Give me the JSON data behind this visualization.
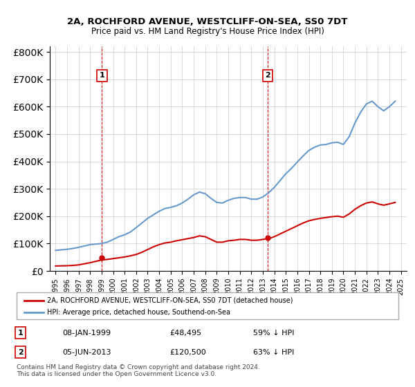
{
  "title": "2A, ROCHFORD AVENUE, WESTCLIFF-ON-SEA, SS0 7DT",
  "subtitle": "Price paid vs. HM Land Registry's House Price Index (HPI)",
  "legend_label_red": "2A, ROCHFORD AVENUE, WESTCLIFF-ON-SEA, SS0 7DT (detached house)",
  "legend_label_blue": "HPI: Average price, detached house, Southend-on-Sea",
  "footer": "Contains HM Land Registry data © Crown copyright and database right 2024.\nThis data is licensed under the Open Government Licence v3.0.",
  "annotation1_num": "1",
  "annotation1_date": "08-JAN-1999",
  "annotation1_price": "£48,495",
  "annotation1_hpi": "59% ↓ HPI",
  "annotation2_num": "2",
  "annotation2_date": "05-JUN-2013",
  "annotation2_price": "£120,500",
  "annotation2_hpi": "63% ↓ HPI",
  "marker1_year": 1999.03,
  "marker1_price": 48495,
  "marker2_year": 2013.43,
  "marker2_price": 120500,
  "red_color": "#cc0000",
  "blue_color": "#6699cc",
  "vline_color": "#cc0000",
  "ylim_max": 820000,
  "hpi_x": [
    1995.0,
    1995.5,
    1996.0,
    1996.5,
    1997.0,
    1997.5,
    1998.0,
    1998.5,
    1999.0,
    1999.5,
    2000.0,
    2000.5,
    2001.0,
    2001.5,
    2002.0,
    2002.5,
    2003.0,
    2003.5,
    2004.0,
    2004.5,
    2005.0,
    2005.5,
    2006.0,
    2006.5,
    2007.0,
    2007.5,
    2008.0,
    2008.5,
    2009.0,
    2009.5,
    2010.0,
    2010.5,
    2011.0,
    2011.5,
    2012.0,
    2012.5,
    2013.0,
    2013.5,
    2014.0,
    2014.5,
    2015.0,
    2015.5,
    2016.0,
    2016.5,
    2017.0,
    2017.5,
    2018.0,
    2018.5,
    2019.0,
    2019.5,
    2020.0,
    2020.5,
    2021.0,
    2021.5,
    2022.0,
    2022.5,
    2023.0,
    2023.5,
    2024.0,
    2024.5
  ],
  "hpi_y": [
    75000,
    77000,
    79000,
    82000,
    86000,
    91000,
    96000,
    98000,
    100000,
    105000,
    115000,
    125000,
    132000,
    142000,
    158000,
    175000,
    192000,
    205000,
    218000,
    228000,
    232000,
    238000,
    248000,
    262000,
    278000,
    288000,
    282000,
    265000,
    250000,
    248000,
    258000,
    265000,
    268000,
    268000,
    262000,
    262000,
    270000,
    285000,
    305000,
    330000,
    355000,
    375000,
    398000,
    420000,
    440000,
    452000,
    460000,
    462000,
    468000,
    470000,
    462000,
    490000,
    540000,
    580000,
    610000,
    620000,
    600000,
    585000,
    600000,
    620000
  ],
  "price_x": [
    1995.0,
    1995.5,
    1996.0,
    1996.5,
    1997.0,
    1997.5,
    1998.0,
    1998.5,
    1999.0,
    1999.5,
    2000.0,
    2000.5,
    2001.0,
    2001.5,
    2002.0,
    2002.5,
    2003.0,
    2003.5,
    2004.0,
    2004.5,
    2005.0,
    2005.5,
    2006.0,
    2006.5,
    2007.0,
    2007.5,
    2008.0,
    2008.5,
    2009.0,
    2009.5,
    2010.0,
    2010.5,
    2011.0,
    2011.5,
    2012.0,
    2012.5,
    2013.0,
    2013.5,
    2014.0,
    2014.5,
    2015.0,
    2015.5,
    2016.0,
    2016.5,
    2017.0,
    2017.5,
    2018.0,
    2018.5,
    2019.0,
    2019.5,
    2020.0,
    2020.5,
    2021.0,
    2021.5,
    2022.0,
    2022.5,
    2023.0,
    2023.5,
    2024.0,
    2024.5
  ],
  "price_y": [
    18000,
    18500,
    19000,
    20000,
    22000,
    26000,
    30000,
    35000,
    40000,
    42000,
    45000,
    48000,
    51000,
    55000,
    60000,
    68000,
    78000,
    88000,
    96000,
    102000,
    105000,
    110000,
    114000,
    118000,
    122000,
    128000,
    125000,
    115000,
    105000,
    105000,
    110000,
    112000,
    115000,
    115000,
    112000,
    112000,
    115000,
    118000,
    125000,
    135000,
    145000,
    155000,
    165000,
    175000,
    183000,
    188000,
    192000,
    195000,
    198000,
    200000,
    196000,
    208000,
    225000,
    238000,
    248000,
    252000,
    245000,
    240000,
    245000,
    250000
  ]
}
